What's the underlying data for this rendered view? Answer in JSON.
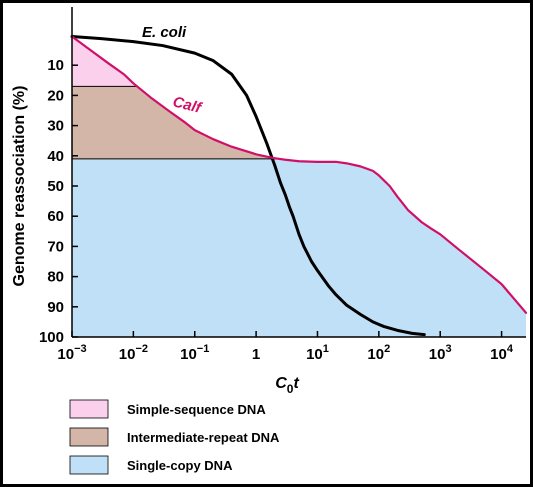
{
  "chart_data": {
    "type": "line",
    "xscale": "log",
    "xlim": [
      0.001,
      25000
    ],
    "ylim": [
      0,
      100
    ],
    "y_inverted": true,
    "xlabel_base": "C",
    "xlabel_sub": "0",
    "xlabel_tail": "t",
    "ylabel": "Genome reassociation (%)",
    "x_ticks": [
      {
        "value": 0.001,
        "base": "10",
        "exp": "−3"
      },
      {
        "value": 0.01,
        "base": "10",
        "exp": "−2"
      },
      {
        "value": 0.1,
        "base": "10",
        "exp": "−1"
      },
      {
        "value": 1,
        "base": "1",
        "exp": ""
      },
      {
        "value": 10,
        "base": "10",
        "exp": "1"
      },
      {
        "value": 100,
        "base": "10",
        "exp": "2"
      },
      {
        "value": 1000,
        "base": "10",
        "exp": "3"
      },
      {
        "value": 10000,
        "base": "10",
        "exp": "4"
      }
    ],
    "y_ticks": [
      10,
      20,
      30,
      40,
      50,
      60,
      70,
      80,
      90,
      100
    ],
    "series": [
      {
        "name": "E. coli",
        "color": "#000000",
        "x": [
          0.001,
          0.003,
          0.01,
          0.03,
          0.1,
          0.2,
          0.4,
          0.7,
          1,
          1.5,
          2,
          2.5,
          3,
          3.5,
          4,
          5,
          6,
          8,
          10,
          15,
          20,
          30,
          50,
          80,
          120,
          200,
          350,
          550
        ],
        "y": [
          0.5,
          1.2,
          2.2,
          3.5,
          6,
          8.5,
          13,
          20,
          27,
          36,
          43,
          49,
          53,
          57,
          60,
          66,
          70,
          75,
          78,
          83,
          86,
          89.5,
          92.5,
          95,
          96.5,
          97.8,
          98.8,
          99.2
        ]
      },
      {
        "name": "Calf",
        "color": "#d01068",
        "x": [
          0.001,
          0.002,
          0.004,
          0.007,
          0.01,
          0.02,
          0.04,
          0.07,
          0.1,
          0.2,
          0.4,
          0.7,
          1,
          1.5,
          2,
          3,
          5,
          10,
          20,
          30,
          50,
          80,
          100,
          150,
          200,
          300,
          500,
          700,
          1000,
          2000,
          5000,
          10000,
          25000
        ],
        "y": [
          0.5,
          5,
          9.5,
          13,
          16,
          21,
          25.5,
          29,
          31.5,
          34.5,
          37,
          38.5,
          39.5,
          40.3,
          40.8,
          41.3,
          41.8,
          42,
          42,
          42.5,
          43.5,
          45,
          46.5,
          50,
          53.5,
          58,
          62,
          64,
          66,
          71,
          77.5,
          82.5,
          92
        ]
      }
    ],
    "annotations": [
      {
        "text": "E. coli",
        "color": "#000000"
      },
      {
        "text": "Calf",
        "color": "#d01068"
      }
    ],
    "components": [
      {
        "name": "Simple-sequence DNA",
        "color": "#fbd0ec",
        "from_pct": 0,
        "to_pct": 17
      },
      {
        "name": "Intermediate-repeat DNA",
        "color": "#d3b6a7",
        "from_pct": 17,
        "to_pct": 41
      },
      {
        "name": "Single-copy DNA",
        "color": "#bfe0f7",
        "from_pct": 41,
        "to_pct": 100
      }
    ],
    "legend": [
      {
        "label": "Simple-sequence DNA",
        "color": "#fbd0ec"
      },
      {
        "label": "Intermediate-repeat DNA",
        "color": "#d3b6a7"
      },
      {
        "label": "Single-copy DNA",
        "color": "#bfe0f7"
      }
    ]
  }
}
